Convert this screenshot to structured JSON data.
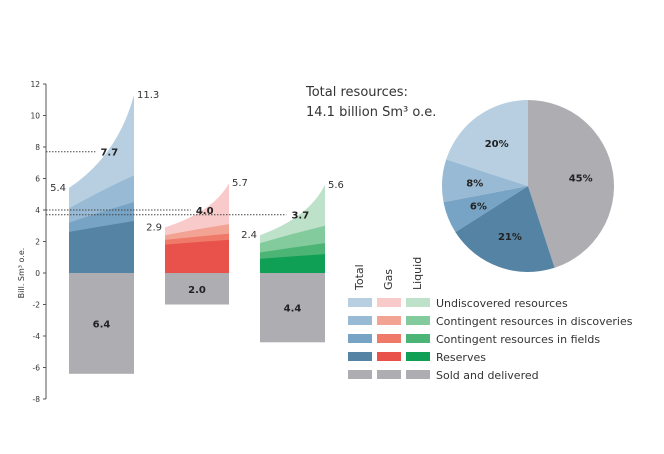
{
  "chart_data": [
    {
      "type": "area",
      "ylabel": "Bill. Sm³ o.e.",
      "ylim": [
        -8,
        12
      ],
      "yticks": [
        -8,
        -6,
        -4,
        -2,
        0,
        2,
        4,
        6,
        8,
        10,
        12
      ],
      "grid": false,
      "layers": [
        "Reserves",
        "Contingent resources in fields",
        "Contingent resources in discoveries",
        "Undiscovered resources"
      ],
      "bars": [
        {
          "key": "total",
          "colors": [
            "#5583a3",
            "#77a3c4",
            "#98bad4",
            "#b7cfe0"
          ],
          "left_stack": [
            2.6,
            3.2,
            4.1,
            5.4
          ],
          "right_stack": [
            3.3,
            4.5,
            6.2,
            11.3
          ],
          "sold_delivered": 6.4,
          "label_left": "5.4",
          "label_right": "11.3",
          "label_mid": "7.7",
          "mid_value": 7.7,
          "label_sold": "6.4"
        },
        {
          "key": "gas",
          "colors": [
            "#e8524a",
            "#f07a6a",
            "#f3a394",
            "#f8caca"
          ],
          "left_stack": [
            1.8,
            2.1,
            2.4,
            2.9
          ],
          "right_stack": [
            2.1,
            2.5,
            3.1,
            5.7
          ],
          "sold_delivered": 2.0,
          "label_left": "2.9",
          "label_right": "5.7",
          "label_mid": "4.0",
          "mid_value": 4.0,
          "label_sold": "2.0"
        },
        {
          "key": "liquid",
          "colors": [
            "#0fa055",
            "#4cb474",
            "#83cb9c",
            "#bde1c9"
          ],
          "left_stack": [
            0.9,
            1.3,
            1.9,
            2.4
          ],
          "right_stack": [
            1.2,
            1.9,
            3.0,
            5.6
          ],
          "sold_delivered": 4.4,
          "label_left": "2.4",
          "label_right": "5.6",
          "label_mid": "3.7",
          "mid_value": 3.7,
          "label_sold": "4.4"
        }
      ],
      "sold_color": "#aeadb2"
    },
    {
      "type": "pie",
      "title_line1": "Total resources:",
      "title_line2": "14.1 billion  Sm³ o.e.",
      "slices": [
        {
          "label": "45%",
          "value": 45,
          "color": "#aeadb2"
        },
        {
          "label": "21%",
          "value": 21,
          "color": "#5583a3"
        },
        {
          "label": "6%",
          "value": 6,
          "color": "#77a3c4"
        },
        {
          "label": "8%",
          "value": 8,
          "color": "#98bad4"
        },
        {
          "label": "20%",
          "value": 20,
          "color": "#b7cfe0"
        }
      ]
    }
  ],
  "legend": {
    "columns": [
      "Total",
      "Gas",
      "Liquid"
    ],
    "rows": [
      {
        "label": "Undiscovered resources",
        "colors": [
          "#b7cfe0",
          "#f8caca",
          "#bde1c9"
        ]
      },
      {
        "label": "Contingent resources in discoveries",
        "colors": [
          "#98bad4",
          "#f3a394",
          "#83cb9c"
        ]
      },
      {
        "label": "Contingent resources in fields",
        "colors": [
          "#77a3c4",
          "#f07a6a",
          "#4cb474"
        ]
      },
      {
        "label": "Reserves",
        "colors": [
          "#5583a3",
          "#e8524a",
          "#0fa055"
        ]
      },
      {
        "label": "Sold and delivered",
        "colors": [
          "#aeadb2",
          "#aeadb2",
          "#aeadb2"
        ]
      }
    ]
  }
}
